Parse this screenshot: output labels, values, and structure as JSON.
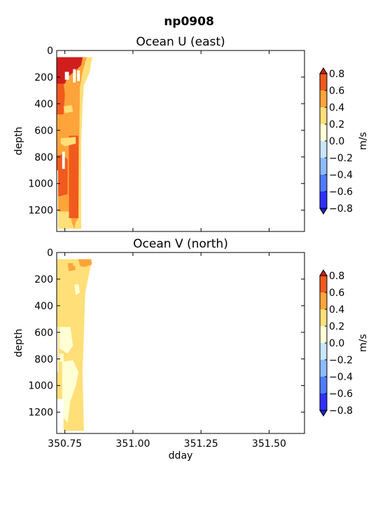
{
  "chart_data": {
    "title": "np0908",
    "type": "heatmap",
    "shared_x": {
      "label": "dday",
      "lim": [
        350.72,
        351.63
      ],
      "ticks": [
        350.75,
        351.0,
        351.25,
        351.5
      ],
      "tick_labels": [
        "350.75",
        "351.00",
        "351.25",
        "351.50"
      ]
    },
    "panels": [
      {
        "title": "Ocean U (east)",
        "ylabel": "depth",
        "ylim": [
          1360,
          0
        ],
        "yticks": [
          0,
          200,
          400,
          600,
          800,
          1000,
          1200
        ],
        "ytick_labels": [
          "0",
          "200",
          "400",
          "600",
          "800",
          "1000",
          "1200"
        ],
        "colorbar": {
          "label": "m/s",
          "levels": [
            -0.8,
            -0.6,
            -0.4,
            -0.2,
            0.0,
            0.2,
            0.4,
            0.6,
            0.8
          ],
          "tick_labels": [
            "−0.8",
            "−0.6",
            "−0.4",
            "−0.2",
            "0.0",
            "0.2",
            "0.4",
            "0.6",
            "0.8"
          ],
          "colors": [
            "#3030ff",
            "#4f7cff",
            "#8bbcff",
            "#c8e6ff",
            "#ffffd6",
            "#ffdf78",
            "#ffa43a",
            "#f05a1e"
          ],
          "extend_low": "#2020c8",
          "extend_high": "#d01e1e"
        },
        "data_patches": [
          {
            "level": 0.3,
            "points": [
              [
                350.72,
                50
              ],
              [
                350.85,
                50
              ],
              [
                350.84,
                170
              ],
              [
                350.82,
                260
              ],
              [
                350.815,
                400
              ],
              [
                350.81,
                700
              ],
              [
                350.81,
                1340
              ],
              [
                350.72,
                1340
              ]
            ]
          },
          {
            "level": 0.5,
            "points": [
              [
                350.72,
                50
              ],
              [
                350.83,
                50
              ],
              [
                350.815,
                160
              ],
              [
                350.805,
                280
              ],
              [
                350.8,
                1260
              ],
              [
                350.79,
                1290
              ],
              [
                350.785,
                1340
              ],
              [
                350.775,
                1290
              ],
              [
                350.77,
                1210
              ],
              [
                350.72,
                1210
              ]
            ]
          },
          {
            "level": 0.7,
            "points": [
              [
                350.72,
                250
              ],
              [
                350.745,
                240
              ],
              [
                350.75,
                330
              ],
              [
                350.745,
                480
              ],
              [
                350.72,
                480
              ]
            ]
          },
          {
            "level": 0.7,
            "points": [
              [
                350.765,
                640
              ],
              [
                350.8,
                640
              ],
              [
                350.8,
                1260
              ],
              [
                350.765,
                1260
              ]
            ]
          },
          {
            "level": 0.7,
            "points": [
              [
                350.72,
                790
              ],
              [
                350.74,
                780
              ],
              [
                350.76,
                820
              ],
              [
                350.76,
                1080
              ],
              [
                350.72,
                1100
              ]
            ]
          },
          {
            "level": 0.9,
            "points": [
              [
                350.72,
                50
              ],
              [
                350.815,
                50
              ],
              [
                350.81,
                110
              ],
              [
                350.79,
                150
              ],
              [
                350.76,
                200
              ],
              [
                350.75,
                250
              ],
              [
                350.72,
                250
              ]
            ]
          },
          {
            "level": 0.5,
            "points": [
              [
                350.725,
                540
              ],
              [
                350.775,
                530
              ],
              [
                350.785,
                580
              ],
              [
                350.76,
                620
              ],
              [
                350.725,
                610
              ]
            ]
          },
          {
            "level": 0.3,
            "points": [
              [
                350.735,
                660
              ],
              [
                350.79,
                650
              ],
              [
                350.79,
                700
              ],
              [
                350.75,
                720
              ],
              [
                350.735,
                700
              ]
            ]
          },
          {
            "level": 0.3,
            "points": [
              [
                350.745,
                420
              ],
              [
                350.775,
                410
              ],
              [
                350.78,
                460
              ],
              [
                350.75,
                470
              ]
            ]
          }
        ],
        "gaps": [
          {
            "points": [
              [
                350.75,
                160
              ],
              [
                350.765,
                160
              ],
              [
                350.765,
                220
              ],
              [
                350.75,
                220
              ]
            ]
          },
          {
            "points": [
              [
                350.78,
                140
              ],
              [
                350.79,
                140
              ],
              [
                350.79,
                240
              ],
              [
                350.78,
                240
              ]
            ]
          },
          {
            "points": [
              [
                350.795,
                150
              ],
              [
                350.805,
                150
              ],
              [
                350.805,
                230
              ],
              [
                350.795,
                230
              ]
            ]
          },
          {
            "points": [
              [
                350.72,
                900
              ],
              [
                350.725,
                900
              ],
              [
                350.725,
                1340
              ],
              [
                350.72,
                1340
              ]
            ]
          },
          {
            "points": [
              [
                350.74,
                760
              ],
              [
                350.75,
                760
              ],
              [
                350.75,
                890
              ],
              [
                350.74,
                890
              ]
            ]
          }
        ]
      },
      {
        "title": "Ocean V (north)",
        "ylabel": "depth",
        "ylim": [
          1360,
          0
        ],
        "yticks": [
          0,
          200,
          400,
          600,
          800,
          1000,
          1200
        ],
        "ytick_labels": [
          "0",
          "200",
          "400",
          "600",
          "800",
          "1000",
          "1200"
        ],
        "colorbar": {
          "label": "m/s",
          "levels": [
            -0.8,
            -0.6,
            -0.4,
            -0.2,
            0.0,
            0.2,
            0.4,
            0.6,
            0.8
          ],
          "tick_labels": [
            "−0.8",
            "−0.6",
            "−0.4",
            "−0.2",
            "0.0",
            "0.2",
            "0.4",
            "0.6",
            "0.8"
          ],
          "colors": [
            "#3030ff",
            "#4f7cff",
            "#8bbcff",
            "#c8e6ff",
            "#ffffd6",
            "#ffdf78",
            "#ffa43a",
            "#f05a1e"
          ],
          "extend_low": "#2020c8",
          "extend_high": "#d01e1e"
        },
        "data_patches": [
          {
            "level": 0.3,
            "points": [
              [
                350.72,
                50
              ],
              [
                350.85,
                50
              ],
              [
                350.84,
                150
              ],
              [
                350.825,
                300
              ],
              [
                350.82,
                600
              ],
              [
                350.815,
                900
              ],
              [
                350.82,
                1340
              ],
              [
                350.72,
                1340
              ]
            ]
          },
          {
            "level": 0.1,
            "points": [
              [
                350.73,
                560
              ],
              [
                350.77,
                560
              ],
              [
                350.78,
                700
              ],
              [
                350.76,
                760
              ],
              [
                350.73,
                720
              ]
            ]
          },
          {
            "level": 0.1,
            "points": [
              [
                350.74,
                820
              ],
              [
                350.78,
                810
              ],
              [
                350.8,
                900
              ],
              [
                350.79,
                1000
              ],
              [
                350.77,
                1120
              ],
              [
                350.76,
                1280
              ],
              [
                350.745,
                1240
              ],
              [
                350.74,
                1080
              ]
            ]
          },
          {
            "level": 0.1,
            "points": [
              [
                350.73,
                760
              ],
              [
                350.745,
                760
              ],
              [
                350.745,
                820
              ],
              [
                350.73,
                820
              ]
            ]
          },
          {
            "level": 0.1,
            "points": [
              [
                350.785,
                240
              ],
              [
                350.8,
                240
              ],
              [
                350.805,
                300
              ],
              [
                350.79,
                320
              ]
            ]
          },
          {
            "level": 0.5,
            "points": [
              [
                350.8,
                50
              ],
              [
                350.845,
                50
              ],
              [
                350.85,
                90
              ],
              [
                350.82,
                110
              ],
              [
                350.805,
                100
              ]
            ]
          },
          {
            "level": 0.5,
            "points": [
              [
                350.76,
                80
              ],
              [
                350.785,
                80
              ],
              [
                350.79,
                130
              ],
              [
                350.765,
                140
              ]
            ]
          },
          {
            "level": 0.3,
            "points": [
              [
                350.78,
                60
              ],
              [
                350.8,
                60
              ],
              [
                350.8,
                100
              ],
              [
                350.78,
                100
              ]
            ]
          }
        ],
        "gaps": [
          {
            "points": [
              [
                350.72,
                560
              ],
              [
                350.726,
                560
              ],
              [
                350.726,
                900
              ],
              [
                350.72,
                900
              ]
            ]
          },
          {
            "points": [
              [
                350.72,
                1100
              ],
              [
                350.745,
                1100
              ],
              [
                350.745,
                1340
              ],
              [
                350.72,
                1340
              ]
            ]
          }
        ]
      }
    ]
  }
}
